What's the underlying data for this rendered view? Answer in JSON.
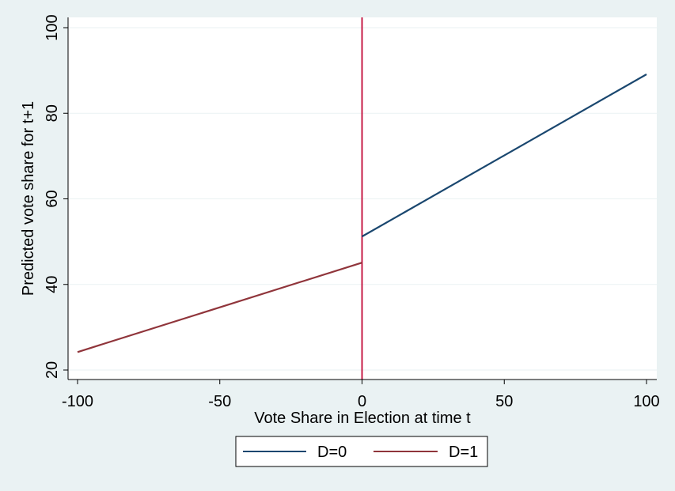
{
  "chart_data": {
    "type": "line",
    "xlabel": "Vote Share in Election at time t",
    "ylabel": "Predicted vote share for t+1",
    "xlim": [
      -100,
      100
    ],
    "ylim": [
      20,
      100
    ],
    "xticks": [
      -100,
      -50,
      0,
      50,
      100
    ],
    "yticks": [
      20,
      40,
      60,
      80,
      100
    ],
    "grid": "horizontal",
    "legend_position": "bottom",
    "series": [
      {
        "name": "D=0",
        "color": "#1a476f",
        "x": [
          0,
          100
        ],
        "y": [
          51.2,
          89.1
        ]
      },
      {
        "name": "D=1",
        "color": "#90353b",
        "x": [
          -100,
          0
        ],
        "y": [
          24.2,
          45.1
        ]
      }
    ],
    "vertical_line": {
      "x": 0,
      "color": "#c10534"
    },
    "colors": {
      "page_background": "#eaf2f3",
      "plot_background": "#ffffff",
      "grid": "#eaf2f3"
    }
  }
}
